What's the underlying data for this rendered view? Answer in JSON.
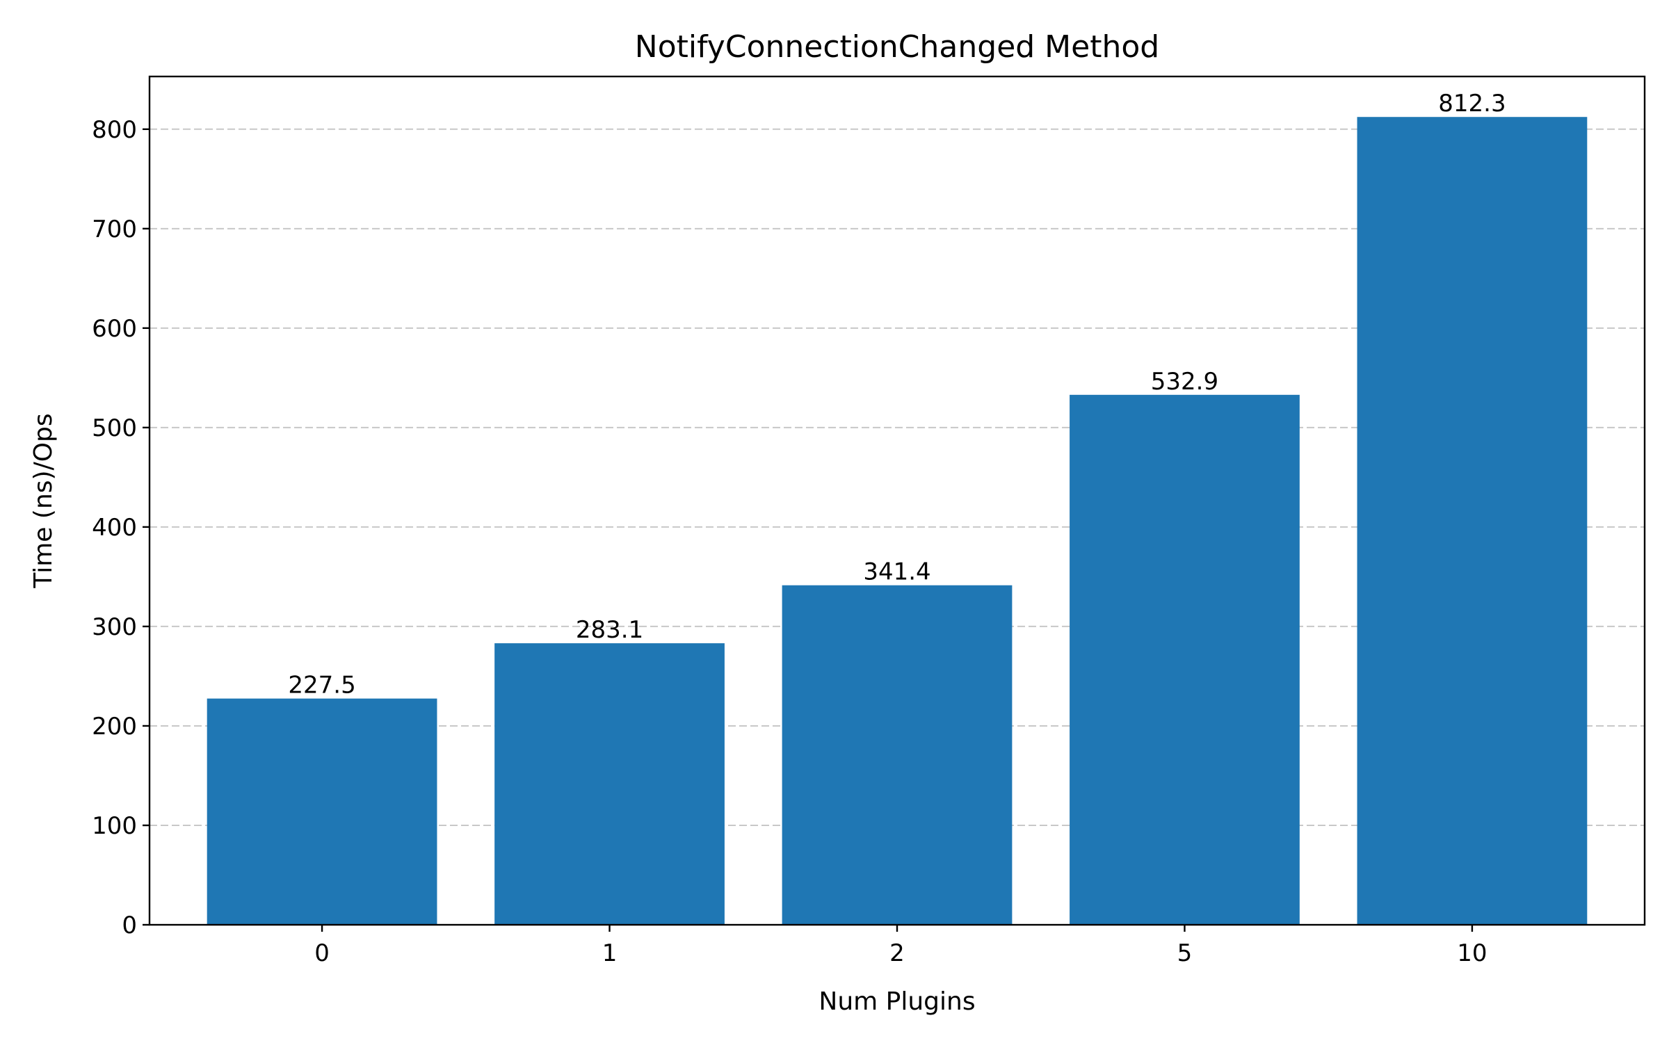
{
  "chart_data": {
    "type": "bar",
    "title": "NotifyConnectionChanged Method",
    "xlabel": "Num Plugins",
    "ylabel": "Time (ns)/Ops",
    "categories": [
      "0",
      "1",
      "2",
      "5",
      "10"
    ],
    "values": [
      227.5,
      283.1,
      341.4,
      532.9,
      812.3
    ],
    "value_labels": [
      "227.5",
      "283.1",
      "341.4",
      "532.9",
      "812.3"
    ],
    "yticks": [
      0,
      100,
      200,
      300,
      400,
      500,
      600,
      700,
      800
    ],
    "ytick_labels": [
      "0",
      "100",
      "200",
      "300",
      "400",
      "500",
      "600",
      "700",
      "800"
    ],
    "ylim": [
      0,
      853
    ],
    "grid": "y-dashed",
    "legend": "none",
    "colors": {
      "bar": "#1f77b4"
    }
  }
}
